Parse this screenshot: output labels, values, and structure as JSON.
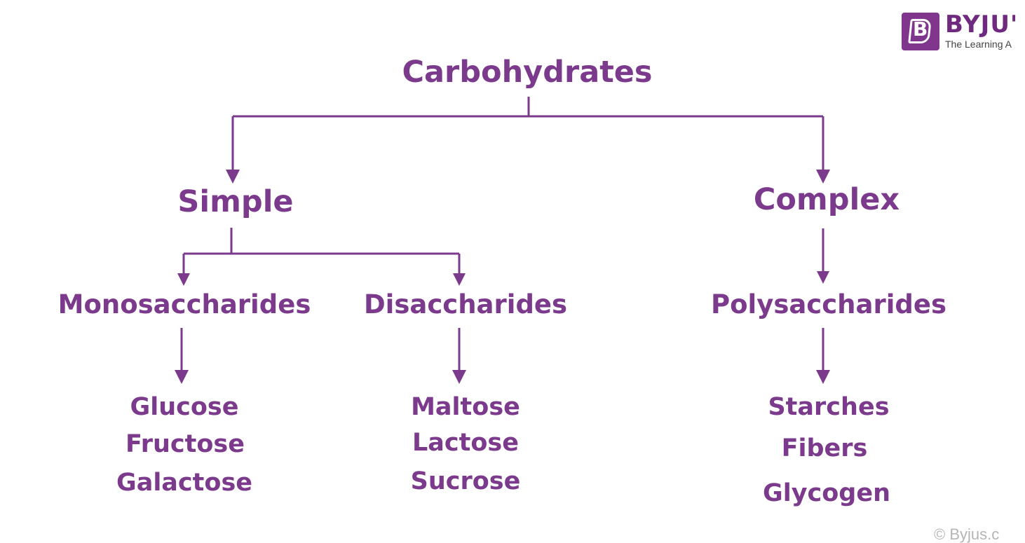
{
  "brand": {
    "name": "BYJU'",
    "tagline": "The Learning A",
    "mark_letter": "B",
    "color": "#80368c"
  },
  "diagram": {
    "accent_color": "#7b3a8c",
    "root": "Carbohydrates",
    "simple": "Simple",
    "complex": "Complex",
    "monosaccharides": "Monosaccharides",
    "disaccharides": "Disaccharides",
    "polysaccharides": "Polysaccharides",
    "mono_examples": [
      "Glucose",
      "Fructose",
      "Galactose"
    ],
    "di_examples": [
      "Maltose",
      "Lactose",
      "Sucrose"
    ],
    "poly_examples": [
      "Starches",
      "Fibers",
      "Glycogen"
    ]
  },
  "footer": {
    "copyright": "© Byjus.c"
  }
}
